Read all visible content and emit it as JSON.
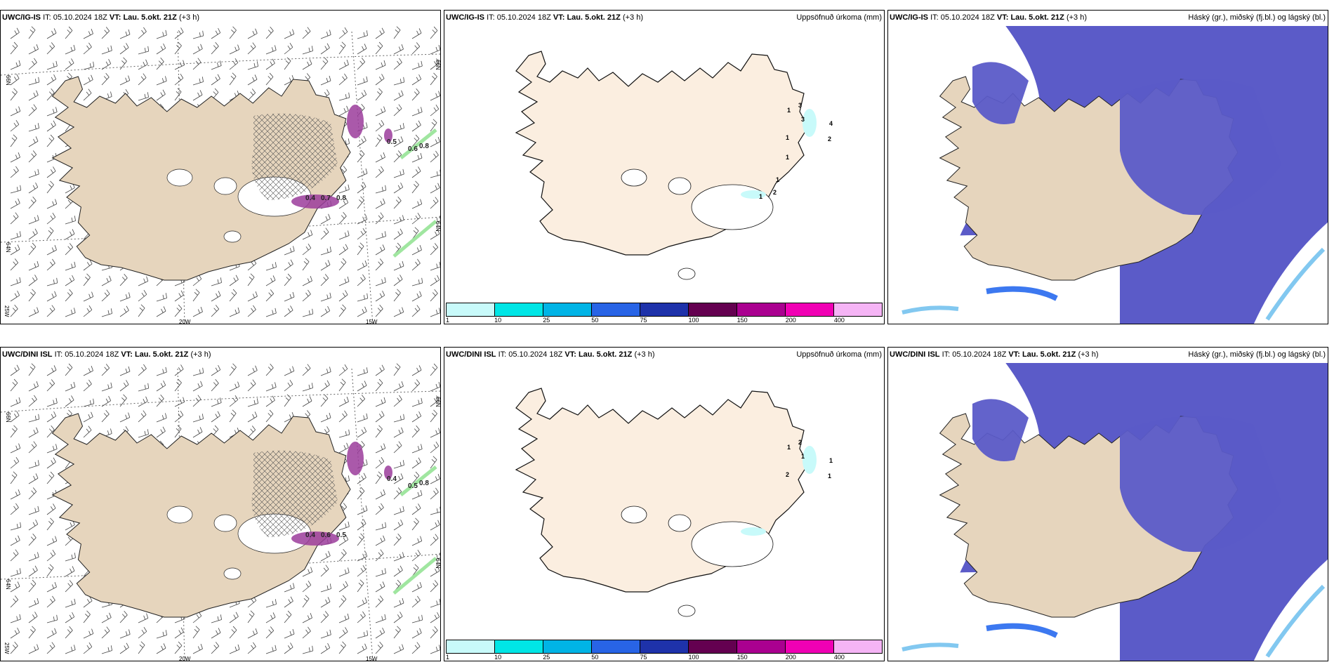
{
  "panels": [
    {
      "model": "UWC/IG-IS",
      "it_label": "IT:",
      "it": "05.10.2024 18Z",
      "vt_label": "VT:",
      "vt": "Lau. 5.okt. 21Z",
      "lead": "(+3 h)",
      "right": "",
      "lat_labels": [
        "66N",
        "66N",
        "64N",
        "64N"
      ],
      "lon_labels": [
        "25W",
        "20W",
        "15W"
      ],
      "values": [
        "0.4",
        "0.7",
        "0.8",
        "0.5",
        "0.6",
        "0.8"
      ]
    },
    {
      "model": "UWC/IG-IS",
      "it_label": "IT:",
      "it": "05.10.2024 18Z",
      "vt_label": "VT:",
      "vt": "Lau. 5.okt. 21Z",
      "lead": "(+3 h)",
      "right": "Uppsöfnuð úrkoma (mm)",
      "values": [
        "1",
        "3",
        "3",
        "4",
        "2",
        "1",
        "1",
        "1",
        "1",
        "2"
      ]
    },
    {
      "model": "UWC/IG-IS",
      "it_label": "IT:",
      "it": "05.10.2024 18Z",
      "vt_label": "VT:",
      "vt": "Lau. 5.okt. 21Z",
      "lead": "(+3 h)",
      "right": "Háský (gr.), miðský (fj.bl.) og lágský (bl.)"
    },
    {
      "model": "UWC/DINI ISL",
      "it_label": "IT:",
      "it": "05.10.2024 18Z",
      "vt_label": "VT:",
      "vt": "Lau. 5.okt. 21Z",
      "lead": "(+3 h)",
      "right": "",
      "lat_labels": [
        "66N",
        "66N",
        "64N",
        "64N"
      ],
      "lon_labels": [
        "25W",
        "20W",
        "15W"
      ],
      "values": [
        "0.4",
        "0.6",
        "0.5",
        "0.4",
        "0.5",
        "0.8"
      ]
    },
    {
      "model": "UWC/DINI ISL",
      "it_label": "IT:",
      "it": "05.10.2024 18Z",
      "vt_label": "VT:",
      "vt": "Lau. 5.okt. 21Z",
      "lead": "(+3 h)",
      "right": "Uppsöfnuð úrkoma (mm)",
      "values": [
        "1",
        "2",
        "1",
        "1",
        "1",
        "2"
      ]
    },
    {
      "model": "UWC/DINI ISL",
      "it_label": "IT:",
      "it": "05.10.2024 18Z",
      "vt_label": "VT:",
      "vt": "Lau. 5.okt. 21Z",
      "lead": "(+3 h)",
      "right": "Háský (gr.), miðský (fj.bl.) og lágský (bl.)"
    }
  ],
  "colorbar": {
    "ticks": [
      "1",
      "10",
      "25",
      "50",
      "75",
      "100",
      "150",
      "200",
      "400"
    ],
    "colors": [
      "#c8fafa",
      "#00e6e6",
      "#00b4e6",
      "#2864e6",
      "#1e32aa",
      "#640050",
      "#aa0090",
      "#f000b4",
      "#f5b4f5"
    ]
  },
  "colors": {
    "land": "#e6d5bd",
    "land_light": "#fbeee0",
    "cloud_high": "#5b5bc8",
    "cloud_mid": "#3c78f0",
    "cloud_low": "#82c8f0",
    "precip": "#9b3c9b",
    "green": "#a0e6a0"
  }
}
